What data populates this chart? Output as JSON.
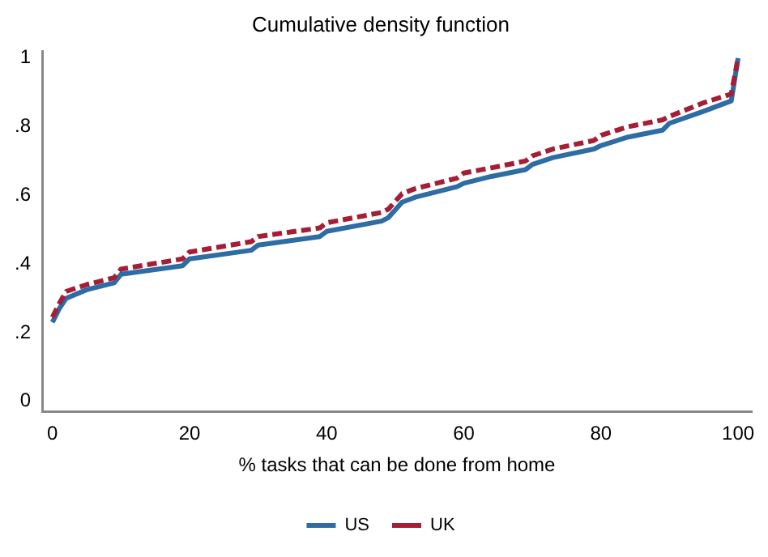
{
  "chart_data": {
    "type": "line",
    "title": "Cumulative density function",
    "xlabel": "% tasks that can be done from home",
    "x": [
      0,
      1,
      2,
      5,
      9,
      10,
      19,
      20,
      29,
      30,
      39,
      40,
      48,
      49,
      51,
      53,
      59,
      60,
      64,
      69,
      70,
      73,
      79,
      80,
      84,
      89,
      90,
      95,
      99,
      100
    ],
    "series": [
      {
        "name": "US",
        "color": "#2e6ca4",
        "line_style": "solid",
        "values": [
          0.23,
          0.27,
          0.3,
          0.325,
          0.345,
          0.37,
          0.395,
          0.415,
          0.44,
          0.455,
          0.48,
          0.495,
          0.525,
          0.535,
          0.58,
          0.595,
          0.625,
          0.635,
          0.655,
          0.675,
          0.69,
          0.71,
          0.735,
          0.745,
          0.77,
          0.79,
          0.81,
          0.845,
          0.875,
          1.0
        ]
      },
      {
        "name": "UK",
        "color": "#a51e36",
        "line_style": "dashed",
        "values": [
          0.245,
          0.285,
          0.32,
          0.34,
          0.36,
          0.385,
          0.415,
          0.435,
          0.465,
          0.48,
          0.505,
          0.52,
          0.55,
          0.56,
          0.605,
          0.62,
          0.65,
          0.665,
          0.68,
          0.7,
          0.715,
          0.735,
          0.76,
          0.775,
          0.8,
          0.82,
          0.83,
          0.87,
          0.895,
          1.0
        ]
      }
    ],
    "xlim": [
      -1.5,
      102
    ],
    "ylim": [
      -0.03,
      1.02
    ],
    "xticks": [
      0,
      20,
      40,
      60,
      80,
      100
    ],
    "yticks": [
      0,
      {
        "value": 0.2,
        "label": ".2"
      },
      {
        "value": 0.4,
        "label": ".4"
      },
      {
        "value": 0.6,
        "label": ".6"
      },
      {
        "value": 0.8,
        "label": ".8"
      },
      1
    ],
    "grid": false,
    "legend": "bottom",
    "marker": "none"
  }
}
